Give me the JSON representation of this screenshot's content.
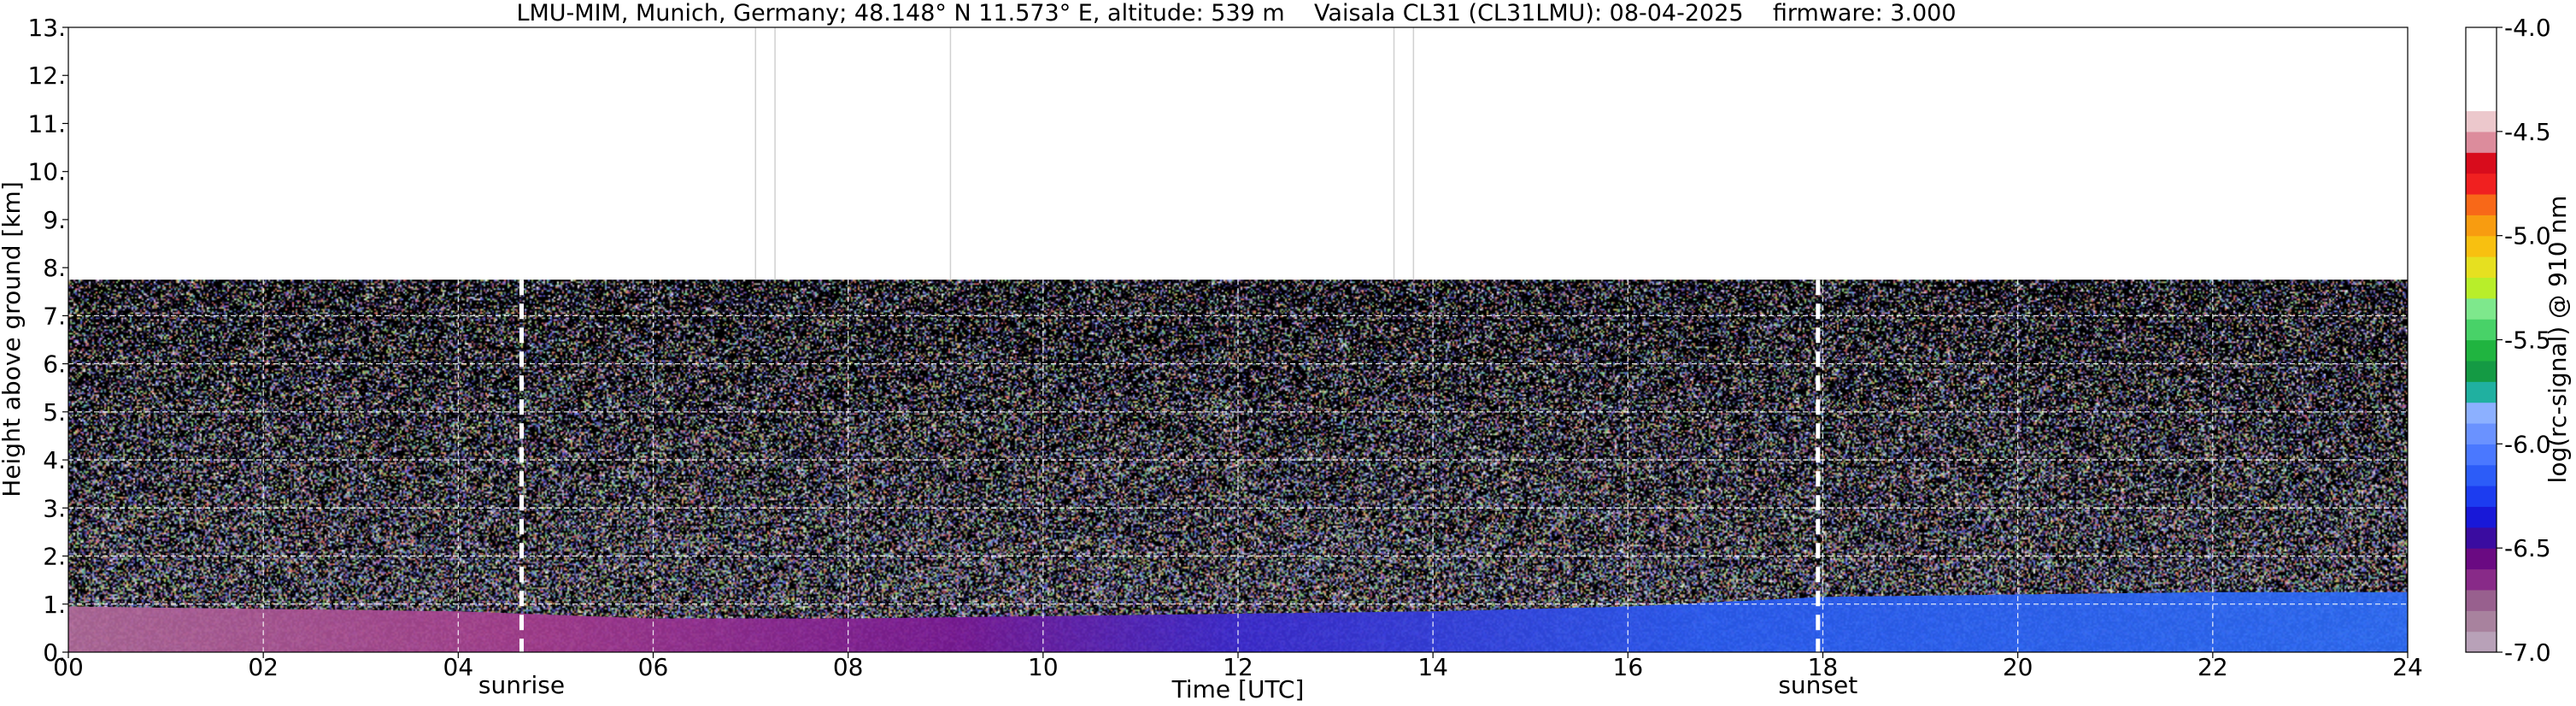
{
  "chart_data": {
    "type": "heatmap",
    "title": "LMU-MIM, Munich, Germany; 48.148° N 11.573° E, altitude: 539 m    Vaisala CL31 (CL31LMU): 08-04-2025    firmware: 3.000",
    "xlabel": "Time [UTC]",
    "ylabel": "Height above ground [km]",
    "xlim": [
      0,
      24
    ],
    "ylim": [
      0,
      13
    ],
    "x_ticks": [
      "00",
      "02",
      "04",
      "06",
      "08",
      "10",
      "12",
      "14",
      "16",
      "18",
      "20",
      "22",
      "24"
    ],
    "y_ticks": [
      "0.",
      "1.",
      "2.",
      "3.",
      "4.",
      "5.",
      "6.",
      "7.",
      "8.",
      "9.",
      "10.",
      "11.",
      "12.",
      "13."
    ],
    "grid": true,
    "data_top_km": 7.75,
    "annotations": [
      {
        "label": "sunrise",
        "time_h": 4.65
      },
      {
        "label": "sunset",
        "time_h": 17.95
      }
    ],
    "gap_lines_h": [
      7.05,
      7.25,
      9.05,
      13.6,
      13.8
    ],
    "layers": [
      {
        "t": 0,
        "top_km": 0.95
      },
      {
        "t": 2,
        "top_km": 0.9
      },
      {
        "t": 4,
        "top_km": 0.85
      },
      {
        "t": 6,
        "top_km": 0.7
      },
      {
        "t": 8,
        "top_km": 0.7
      },
      {
        "t": 10,
        "top_km": 0.75
      },
      {
        "t": 12,
        "top_km": 0.8
      },
      {
        "t": 14,
        "top_km": 0.85
      },
      {
        "t": 16,
        "top_km": 0.95
      },
      {
        "t": 18,
        "top_km": 1.15
      },
      {
        "t": 20,
        "top_km": 1.2
      },
      {
        "t": 22,
        "top_km": 1.25
      },
      {
        "t": 24,
        "top_km": 1.25
      }
    ],
    "colorbar": {
      "label": "log(rc-signal) @ 910 nm",
      "range": [
        -7.0,
        -4.0
      ],
      "ticks": [
        "-4.0",
        "-4.5",
        "-5.0",
        "-5.5",
        "-6.0",
        "-6.5",
        "-7.0"
      ],
      "colors": [
        "#b8a1b8",
        "#a8829e",
        "#98608e",
        "#882a88",
        "#6a0a82",
        "#3a0ca0",
        "#1818d8",
        "#1c3cf0",
        "#2c5cf8",
        "#4a78ff",
        "#6a92ff",
        "#8cb0ff",
        "#20b0a0",
        "#149a44",
        "#20b440",
        "#48d268",
        "#7ee88c",
        "#b8ee2a",
        "#e6e020",
        "#f8c010",
        "#f89c10",
        "#f86818",
        "#f02020",
        "#d80c1c",
        "#dc8c9c",
        "#ecc8cc",
        "#ffffff",
        "#ffffff",
        "#ffffff",
        "#ffffff"
      ]
    }
  }
}
